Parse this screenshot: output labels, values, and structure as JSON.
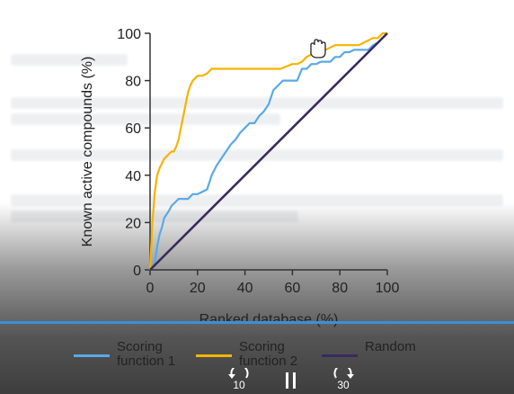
{
  "chart_data": {
    "type": "line",
    "xlabel": "Ranked database (%)",
    "ylabel": "Known active compounds (%)",
    "xlim": [
      0,
      100
    ],
    "ylim": [
      0,
      100
    ],
    "xticks": [
      "0",
      "20",
      "40",
      "60",
      "80",
      "100"
    ],
    "yticks": [
      "0",
      "20",
      "40",
      "60",
      "80",
      "100"
    ],
    "grid": false,
    "legend_position": "bottom",
    "series": [
      {
        "name": "Scoring\nfunction 1",
        "color": "#5aa9e6",
        "x": [
          0,
          2,
          3,
          4,
          5,
          6,
          8,
          9,
          10,
          12,
          14,
          16,
          18,
          20,
          22,
          24,
          26,
          28,
          30,
          32,
          34,
          36,
          38,
          40,
          42,
          44,
          46,
          48,
          50,
          52,
          54,
          56,
          58,
          60,
          62,
          64,
          66,
          68,
          70,
          72,
          74,
          76,
          78,
          80,
          82,
          84,
          86,
          88,
          90,
          92,
          94,
          96,
          98,
          100
        ],
        "y": [
          0,
          3,
          10,
          15,
          18,
          22,
          25,
          27,
          28,
          30,
          30,
          30,
          32,
          32,
          33,
          34,
          40,
          44,
          47,
          50,
          53,
          55,
          58,
          60,
          62,
          62,
          65,
          67,
          70,
          76,
          78,
          80,
          80,
          80,
          80,
          85,
          85,
          87,
          87,
          88,
          88,
          88,
          90,
          90,
          92,
          92,
          93,
          93,
          93,
          93,
          95,
          96,
          98,
          100
        ]
      },
      {
        "name": "Scoring\nfunction 2",
        "color": "#f5b400",
        "x": [
          0,
          1,
          2,
          3,
          4,
          5,
          6,
          7,
          8,
          9,
          10,
          11,
          12,
          13,
          14,
          15,
          16,
          17,
          18,
          20,
          22,
          24,
          26,
          30,
          35,
          40,
          45,
          50,
          52,
          55,
          60,
          62,
          64,
          66,
          68,
          70,
          72,
          74,
          76,
          78,
          80,
          82,
          84,
          86,
          88,
          90,
          92,
          94,
          96,
          98,
          100
        ],
        "y": [
          0,
          20,
          33,
          40,
          43,
          45,
          47,
          48,
          49,
          50,
          50,
          52,
          55,
          60,
          65,
          70,
          75,
          78,
          80,
          82,
          82,
          83,
          85,
          85,
          85,
          85,
          85,
          85,
          85,
          85,
          87,
          87,
          88,
          90,
          91,
          92,
          93,
          93,
          94,
          95,
          95,
          95,
          95,
          95,
          95,
          96,
          97,
          98,
          98,
          100,
          100
        ]
      },
      {
        "name": "Random",
        "color": "#3a2a5e",
        "x": [
          0,
          100
        ],
        "y": [
          0,
          100
        ]
      }
    ]
  },
  "player": {
    "rewind_label": "10",
    "forward_label": "30",
    "rewind_icon": "rewind-10-icon",
    "pause_icon": "pause-icon",
    "forward_icon": "forward-30-icon",
    "cursor_icon": "hand-cursor-icon",
    "timeline_color": "#3b8fd9"
  }
}
